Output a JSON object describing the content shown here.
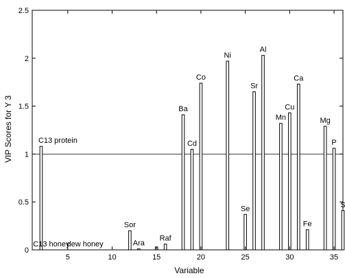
{
  "chart_data": {
    "type": "bar",
    "xlabel": "Variable",
    "ylabel": "VIP Scores for Y 3",
    "xlim": [
      1,
      36
    ],
    "ylim": [
      0,
      2.5
    ],
    "x_ticks": [
      5,
      10,
      15,
      20,
      25,
      30,
      35
    ],
    "y_ticks": [
      0,
      0.5,
      1,
      1.5,
      2,
      2.5
    ],
    "y_tick_labels": [
      "0",
      "0.5",
      "1",
      "1.5",
      "2",
      "2.5"
    ],
    "threshold": 1,
    "grid": false,
    "bars": [
      {
        "x": 2,
        "value": 1.08,
        "label": "C13  protein"
      },
      {
        "x": 3,
        "value": 0.0
      },
      {
        "x": 4,
        "value": 0.0
      },
      {
        "x": 5,
        "value": 0.0
      },
      {
        "x": 6,
        "value": 0.0
      },
      {
        "x": 7,
        "value": 0.0
      },
      {
        "x": 8,
        "value": 0.0
      },
      {
        "x": 9,
        "value": 0.0
      },
      {
        "x": 10,
        "value": 0.0
      },
      {
        "x": 11,
        "value": 0.0
      },
      {
        "x": 12,
        "value": 0.2,
        "label": "Sor"
      },
      {
        "x": 13,
        "value": 0.01,
        "label": "Ara"
      },
      {
        "x": 14,
        "value": 0.0
      },
      {
        "x": 15,
        "value": 0.03
      },
      {
        "x": 16,
        "value": 0.06,
        "label": "Raf"
      },
      {
        "x": 17,
        "value": 0.0
      },
      {
        "x": 18,
        "value": 1.41,
        "label": "Ba"
      },
      {
        "x": 19,
        "value": 1.05,
        "label": "Cd"
      },
      {
        "x": 20,
        "value": 1.74,
        "label": "Co"
      },
      {
        "x": 21,
        "value": 0.0
      },
      {
        "x": 22,
        "value": 0.0
      },
      {
        "x": 23,
        "value": 1.97,
        "label": "Ni"
      },
      {
        "x": 24,
        "value": 0.0
      },
      {
        "x": 25,
        "value": 0.37,
        "label": "Se"
      },
      {
        "x": 26,
        "value": 1.65,
        "label": "Sr"
      },
      {
        "x": 27,
        "value": 2.03,
        "label": "Al"
      },
      {
        "x": 28,
        "value": 0.0
      },
      {
        "x": 29,
        "value": 1.32,
        "label": "Mn"
      },
      {
        "x": 30,
        "value": 1.43,
        "label": "Cu"
      },
      {
        "x": 31,
        "value": 1.73,
        "label": "Ca"
      },
      {
        "x": 32,
        "value": 0.21,
        "label": "Fe"
      },
      {
        "x": 33,
        "value": 0.0
      },
      {
        "x": 34,
        "value": 1.29,
        "label": "Mg"
      },
      {
        "x": 35,
        "value": 1.06,
        "label": "P"
      },
      {
        "x": 36,
        "value": 0.41,
        "label": "S"
      }
    ],
    "annotations": [
      {
        "text": "C13  honey",
        "x": 1.1,
        "y": 0.02
      },
      {
        "text": "dew honey",
        "x": 4.9,
        "y": 0.02
      }
    ]
  }
}
